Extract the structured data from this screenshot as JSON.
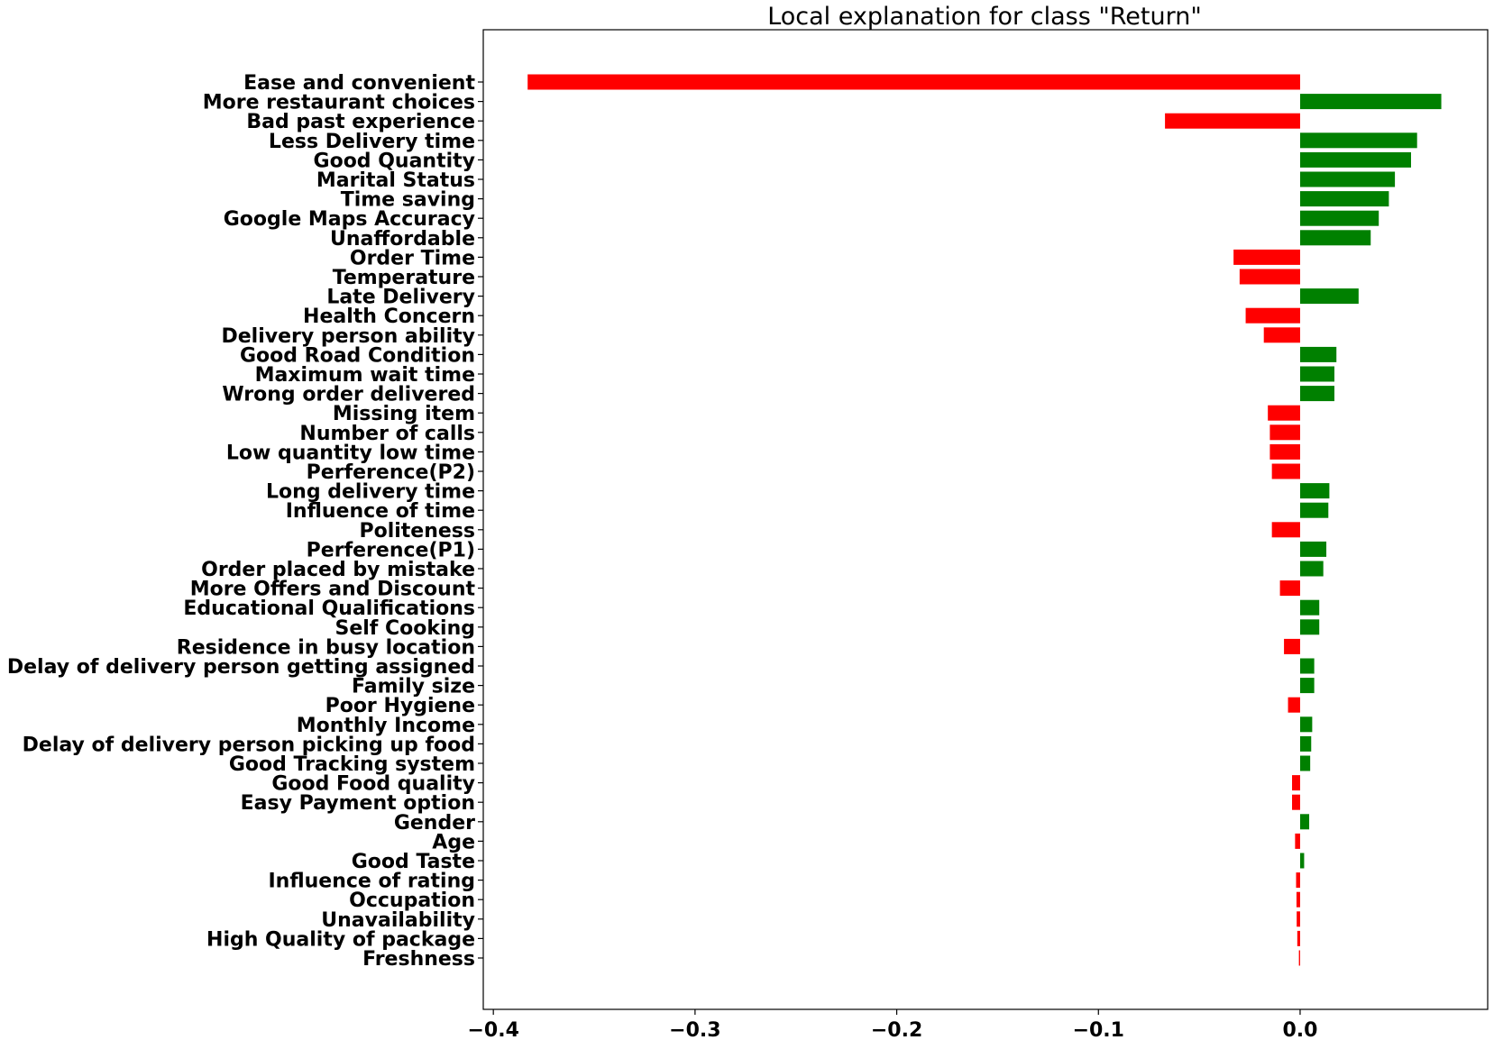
{
  "chart_data": {
    "type": "bar",
    "orientation": "horizontal",
    "title": "Local explanation for class \"Return\"",
    "xlabel": "",
    "ylabel": "",
    "xlim": [
      -0.405,
      0.093
    ],
    "xticks": [
      -0.4,
      -0.3,
      -0.2,
      -0.1,
      0.0
    ],
    "xtick_labels": [
      "−0.4",
      "−0.3",
      "−0.2",
      "−0.1",
      "0.0"
    ],
    "grid": false,
    "colors": {
      "positive": "#008000",
      "negative": "#ff0000"
    },
    "categories": [
      "Ease and convenient",
      "More restaurant choices",
      "Bad past experience",
      "Less Delivery time",
      "Good Quantity",
      "Marital Status",
      "Time saving",
      "Google Maps Accuracy",
      "Unaffordable",
      "Order Time",
      "Temperature",
      "Late Delivery",
      "Health Concern",
      "Delivery person ability",
      "Good Road Condition",
      "Maximum wait time",
      "Wrong order delivered",
      "Missing item",
      "Number of calls",
      "Low quantity low time",
      "Perference(P2)",
      "Long delivery time",
      "Influence of time",
      "Politeness",
      "Perference(P1)",
      "Order placed by mistake",
      "More Offers and Discount",
      "Educational Qualifications",
      "Self Cooking",
      "Residence in busy location",
      "Delay of delivery person getting assigned",
      "Family size",
      "Poor Hygiene",
      "Monthly Income",
      "Delay of delivery person picking up food",
      "Good Tracking system",
      "Good Food quality",
      "Easy Payment option",
      "Gender",
      "Age",
      "Good Taste ",
      "Influence of rating",
      "Occupation",
      "Unavailability",
      "High Quality of package",
      "Freshness "
    ],
    "values": [
      -0.383,
      0.07,
      -0.067,
      0.058,
      0.055,
      0.047,
      0.044,
      0.039,
      0.035,
      -0.033,
      -0.03,
      0.029,
      -0.027,
      -0.018,
      0.018,
      0.017,
      0.017,
      -0.016,
      -0.015,
      -0.015,
      -0.014,
      0.0145,
      0.014,
      -0.014,
      0.013,
      0.0115,
      -0.01,
      0.0095,
      0.0095,
      -0.008,
      0.007,
      0.007,
      -0.006,
      0.006,
      0.0055,
      0.005,
      -0.004,
      -0.004,
      0.0045,
      -0.0025,
      0.002,
      -0.002,
      -0.0018,
      -0.0017,
      -0.0014,
      -0.0006
    ]
  }
}
